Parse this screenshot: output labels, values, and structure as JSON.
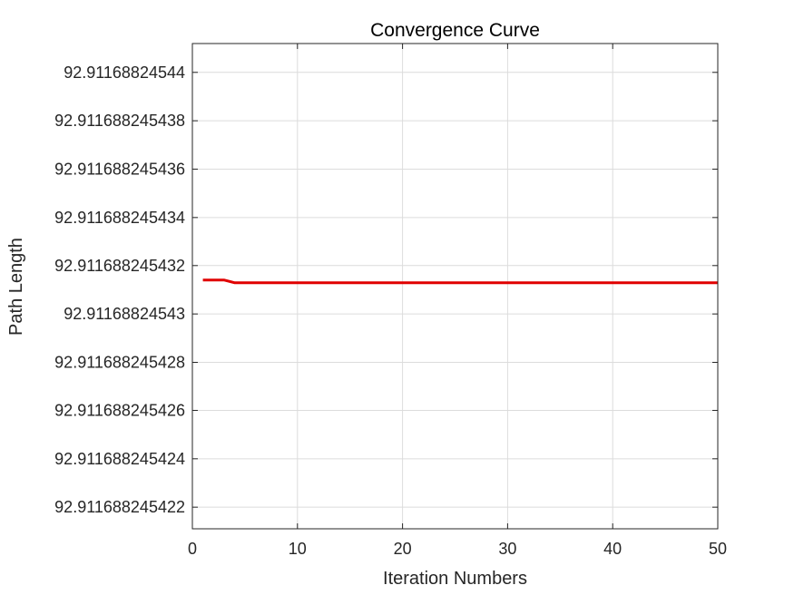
{
  "chart_data": {
    "type": "line",
    "title": "Convergence Curve",
    "xlabel": "Iteration Numbers",
    "ylabel": "Path Length",
    "xlim": [
      0,
      50
    ],
    "xticks": [
      0,
      10,
      20,
      30,
      40,
      50
    ],
    "xtick_labels": [
      "0",
      "10",
      "20",
      "30",
      "40",
      "50"
    ],
    "ylim": [
      92.9116882454211,
      92.9116882454412
    ],
    "yticks": [
      92.911688245422,
      92.911688245424,
      92.911688245426,
      92.911688245428,
      92.91168824543,
      92.911688245432,
      92.911688245434,
      92.911688245436,
      92.911688245438,
      92.91168824544
    ],
    "ytick_labels": [
      "92.911688245422",
      "92.911688245424",
      "92.911688245426",
      "92.911688245428",
      "92.91168824543",
      "92.911688245432",
      "92.911688245434",
      "92.911688245436",
      "92.911688245438",
      "92.91168824544"
    ],
    "grid": true,
    "series": [
      {
        "color": "#e00000",
        "x": [
          1,
          2,
          3,
          4,
          5,
          6,
          7,
          8,
          9,
          10,
          11,
          12,
          13,
          14,
          15,
          16,
          17,
          18,
          19,
          20,
          21,
          22,
          23,
          24,
          25,
          26,
          27,
          28,
          29,
          30,
          31,
          32,
          33,
          34,
          35,
          36,
          37,
          38,
          39,
          40,
          41,
          42,
          43,
          44,
          45,
          46,
          47,
          48,
          49,
          50
        ],
        "y_offset_base": 92.9116882454,
        "y": [
          92.9116882454314,
          92.9116882454314,
          92.9116882454314,
          92.9116882454313,
          92.9116882454313,
          92.9116882454313,
          92.9116882454313,
          92.9116882454313,
          92.9116882454313,
          92.9116882454313,
          92.9116882454313,
          92.9116882454313,
          92.9116882454313,
          92.9116882454313,
          92.9116882454313,
          92.9116882454313,
          92.9116882454313,
          92.9116882454313,
          92.9116882454313,
          92.9116882454313,
          92.9116882454313,
          92.9116882454313,
          92.9116882454313,
          92.9116882454313,
          92.9116882454313,
          92.9116882454313,
          92.9116882454313,
          92.9116882454313,
          92.9116882454313,
          92.9116882454313,
          92.9116882454313,
          92.9116882454313,
          92.9116882454313,
          92.9116882454313,
          92.9116882454313,
          92.9116882454313,
          92.9116882454313,
          92.9116882454313,
          92.9116882454313,
          92.9116882454313,
          92.9116882454313,
          92.9116882454313,
          92.9116882454313,
          92.9116882454313,
          92.9116882454313,
          92.9116882454313,
          92.9116882454313,
          92.9116882454313,
          92.9116882454313,
          92.9116882454313
        ]
      }
    ]
  }
}
